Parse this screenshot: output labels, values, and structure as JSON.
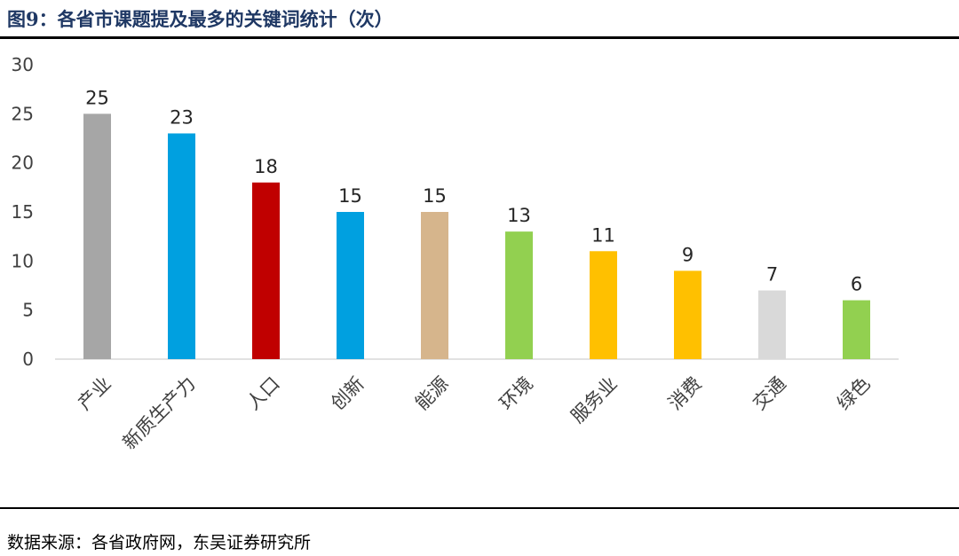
{
  "figure": {
    "title": "图9：各省市课题提及最多的关键词统计（次）",
    "source": "数据来源：各省政府网，东吴证券研究所"
  },
  "chart_data": {
    "type": "bar",
    "title": "图9：各省市课题提及最多的关键词统计（次）",
    "xlabel": "",
    "ylabel": "",
    "categories": [
      "产业",
      "新质生产力",
      "人口",
      "创新",
      "能源",
      "环境",
      "服务业",
      "消费",
      "交通",
      "绿色"
    ],
    "values": [
      25,
      23,
      18,
      15,
      15,
      13,
      11,
      9,
      7,
      6
    ],
    "bar_colors": [
      "#a6a6a6",
      "#00a0e0",
      "#c00000",
      "#00a0e0",
      "#d6b58c",
      "#92d050",
      "#ffc000",
      "#ffc000",
      "#d9d9d9",
      "#92d050"
    ],
    "ylim": [
      0,
      30
    ],
    "yticks": [
      0,
      5,
      10,
      15,
      20,
      25,
      30
    ],
    "grid": false,
    "legend": "none",
    "data_labels": true
  }
}
